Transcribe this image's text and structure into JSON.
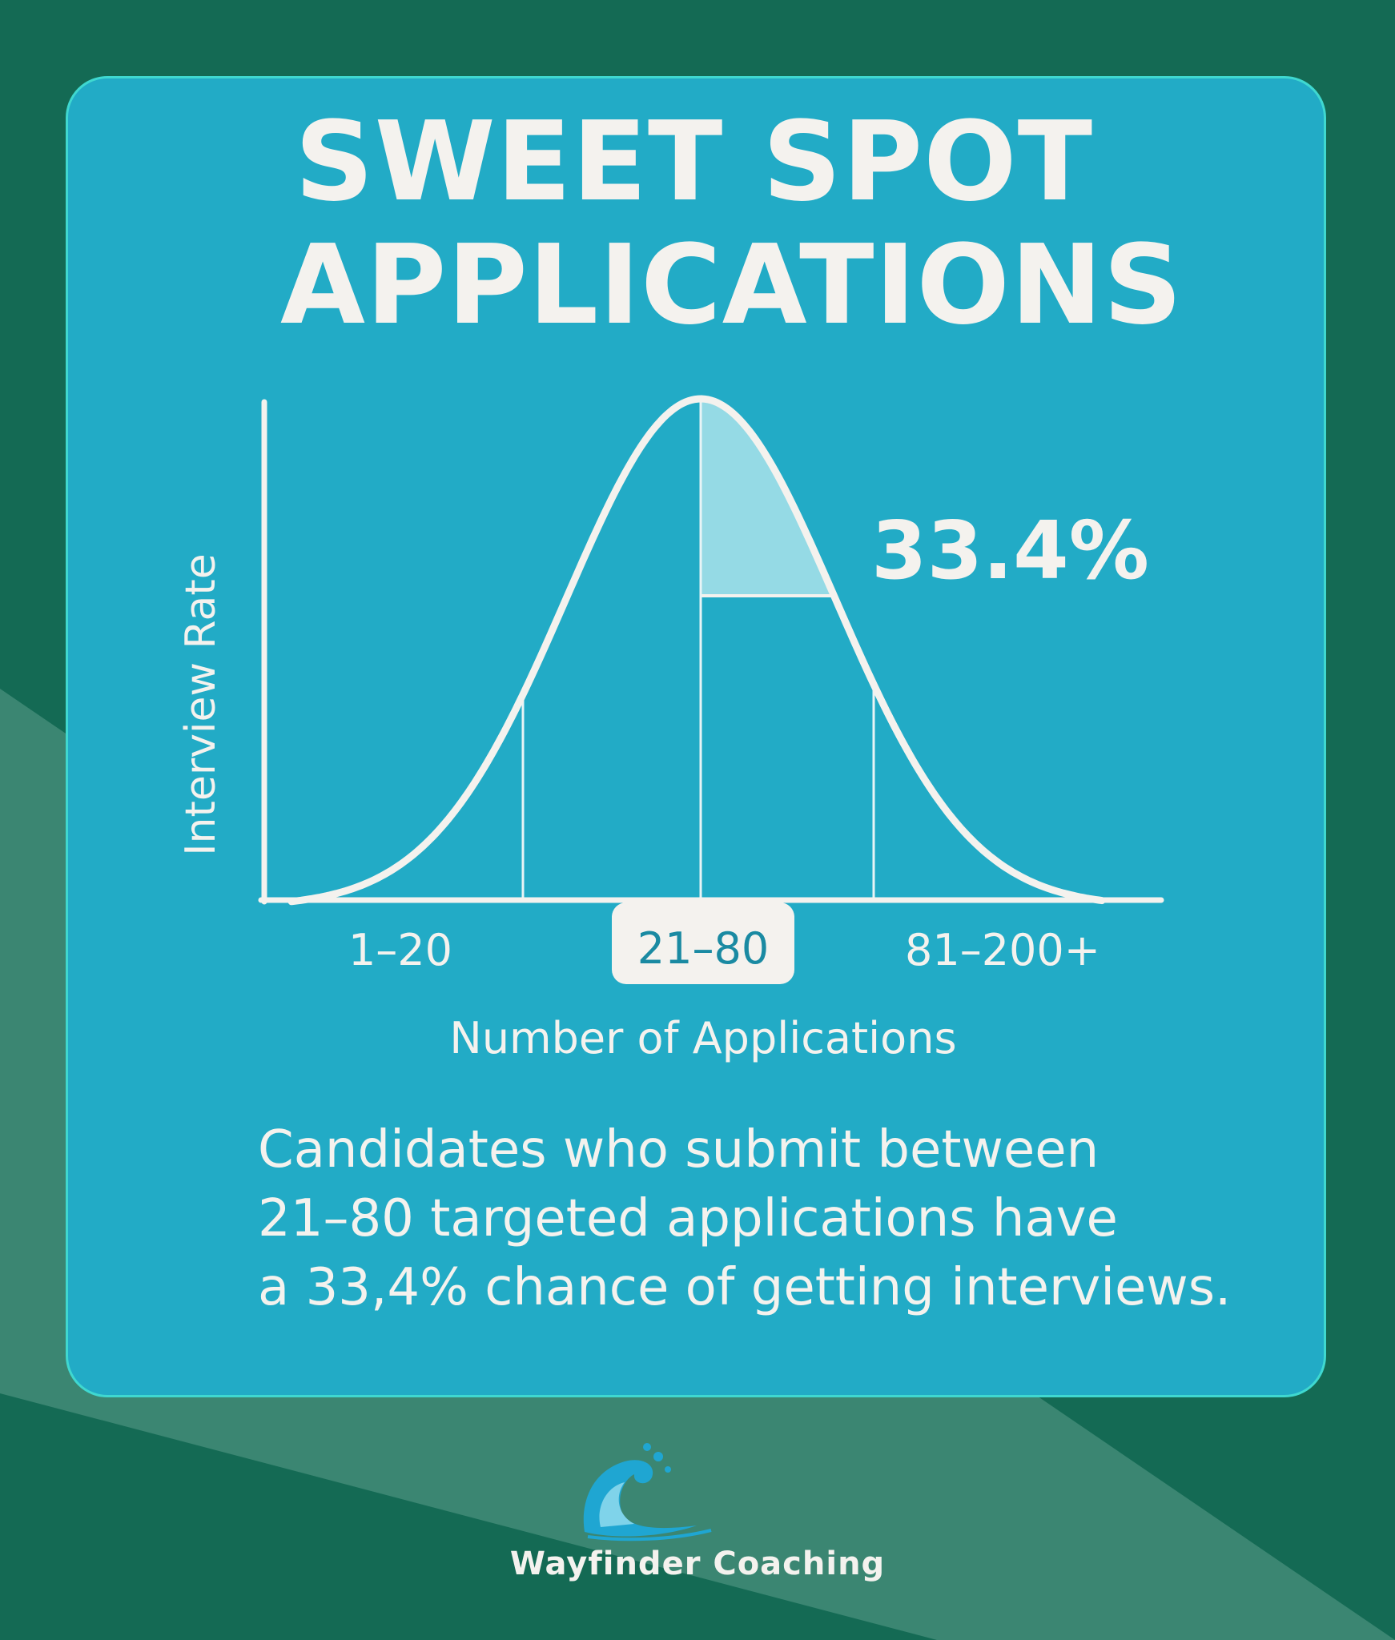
{
  "title": {
    "line1": "SWEET SPOT",
    "line2": "APPLICATIONS"
  },
  "chart_data": {
    "type": "area",
    "xlabel": "Number of Applications",
    "ylabel": "Interview Rate",
    "categories": [
      "1–20",
      "21–80",
      "81–200+"
    ],
    "highlighted_category": "21–80",
    "callout": "33.4%",
    "grid": false,
    "legend": "none"
  },
  "caption": {
    "line1": "Candidates who submit between",
    "line2": "21–80 targeted applications have",
    "line3": "a 33,4% chance of getting interviews."
  },
  "brand": {
    "name": "Wayfinder Coaching"
  },
  "colors": {
    "background": "#146a54",
    "background_band": "#3b8672",
    "card": "#22abc6",
    "card_border": "#3fd8d0",
    "text": "#f4f2ee",
    "highlight": "#a9e2ea"
  }
}
